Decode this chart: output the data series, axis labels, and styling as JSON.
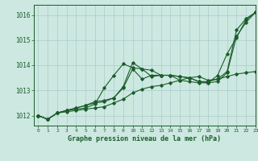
{
  "title": "Graphe pression niveau de la mer (hPa)",
  "xlim": [
    -0.5,
    23
  ],
  "ylim": [
    1011.6,
    1016.4
  ],
  "yticks": [
    1012,
    1013,
    1014,
    1015,
    1016
  ],
  "xticks": [
    0,
    1,
    2,
    3,
    4,
    5,
    6,
    7,
    8,
    9,
    10,
    11,
    12,
    13,
    14,
    15,
    16,
    17,
    18,
    19,
    20,
    21,
    22,
    23
  ],
  "background_color": "#cce8e0",
  "grid_color": "#aacccc",
  "line_color": "#1a5c2a",
  "series": [
    [
      1012.0,
      1011.85,
      1012.1,
      1012.15,
      1012.2,
      1012.25,
      1012.3,
      1012.35,
      1012.5,
      1012.65,
      1012.9,
      1013.05,
      1013.15,
      1013.2,
      1013.3,
      1013.4,
      1013.5,
      1013.55,
      1013.4,
      1013.45,
      1013.55,
      1013.65,
      1013.7,
      1013.75
    ],
    [
      1012.0,
      1011.85,
      1012.1,
      1012.2,
      1012.25,
      1012.3,
      1012.45,
      1013.1,
      1013.6,
      1014.05,
      1013.9,
      1013.85,
      1013.8,
      1013.6,
      1013.6,
      1013.4,
      1013.35,
      1013.3,
      1013.3,
      1013.6,
      1014.45,
      1015.1,
      1015.8,
      1016.1
    ],
    [
      1012.0,
      1011.85,
      1012.1,
      1012.2,
      1012.3,
      1012.4,
      1012.5,
      1012.55,
      1012.7,
      1013.1,
      1013.85,
      1013.45,
      1013.6,
      1013.6,
      1013.6,
      1013.55,
      1013.5,
      1013.35,
      1013.3,
      1013.35,
      1013.7,
      1015.15,
      1015.7,
      1016.1
    ],
    [
      1012.0,
      1011.85,
      1012.1,
      1012.2,
      1012.3,
      1012.4,
      1012.55,
      1012.6,
      1012.7,
      1013.15,
      1014.1,
      1013.85,
      1013.55,
      1013.6,
      1013.6,
      1013.55,
      1013.5,
      1013.35,
      1013.35,
      1013.45,
      1013.75,
      1015.4,
      1015.85,
      1016.1
    ]
  ]
}
